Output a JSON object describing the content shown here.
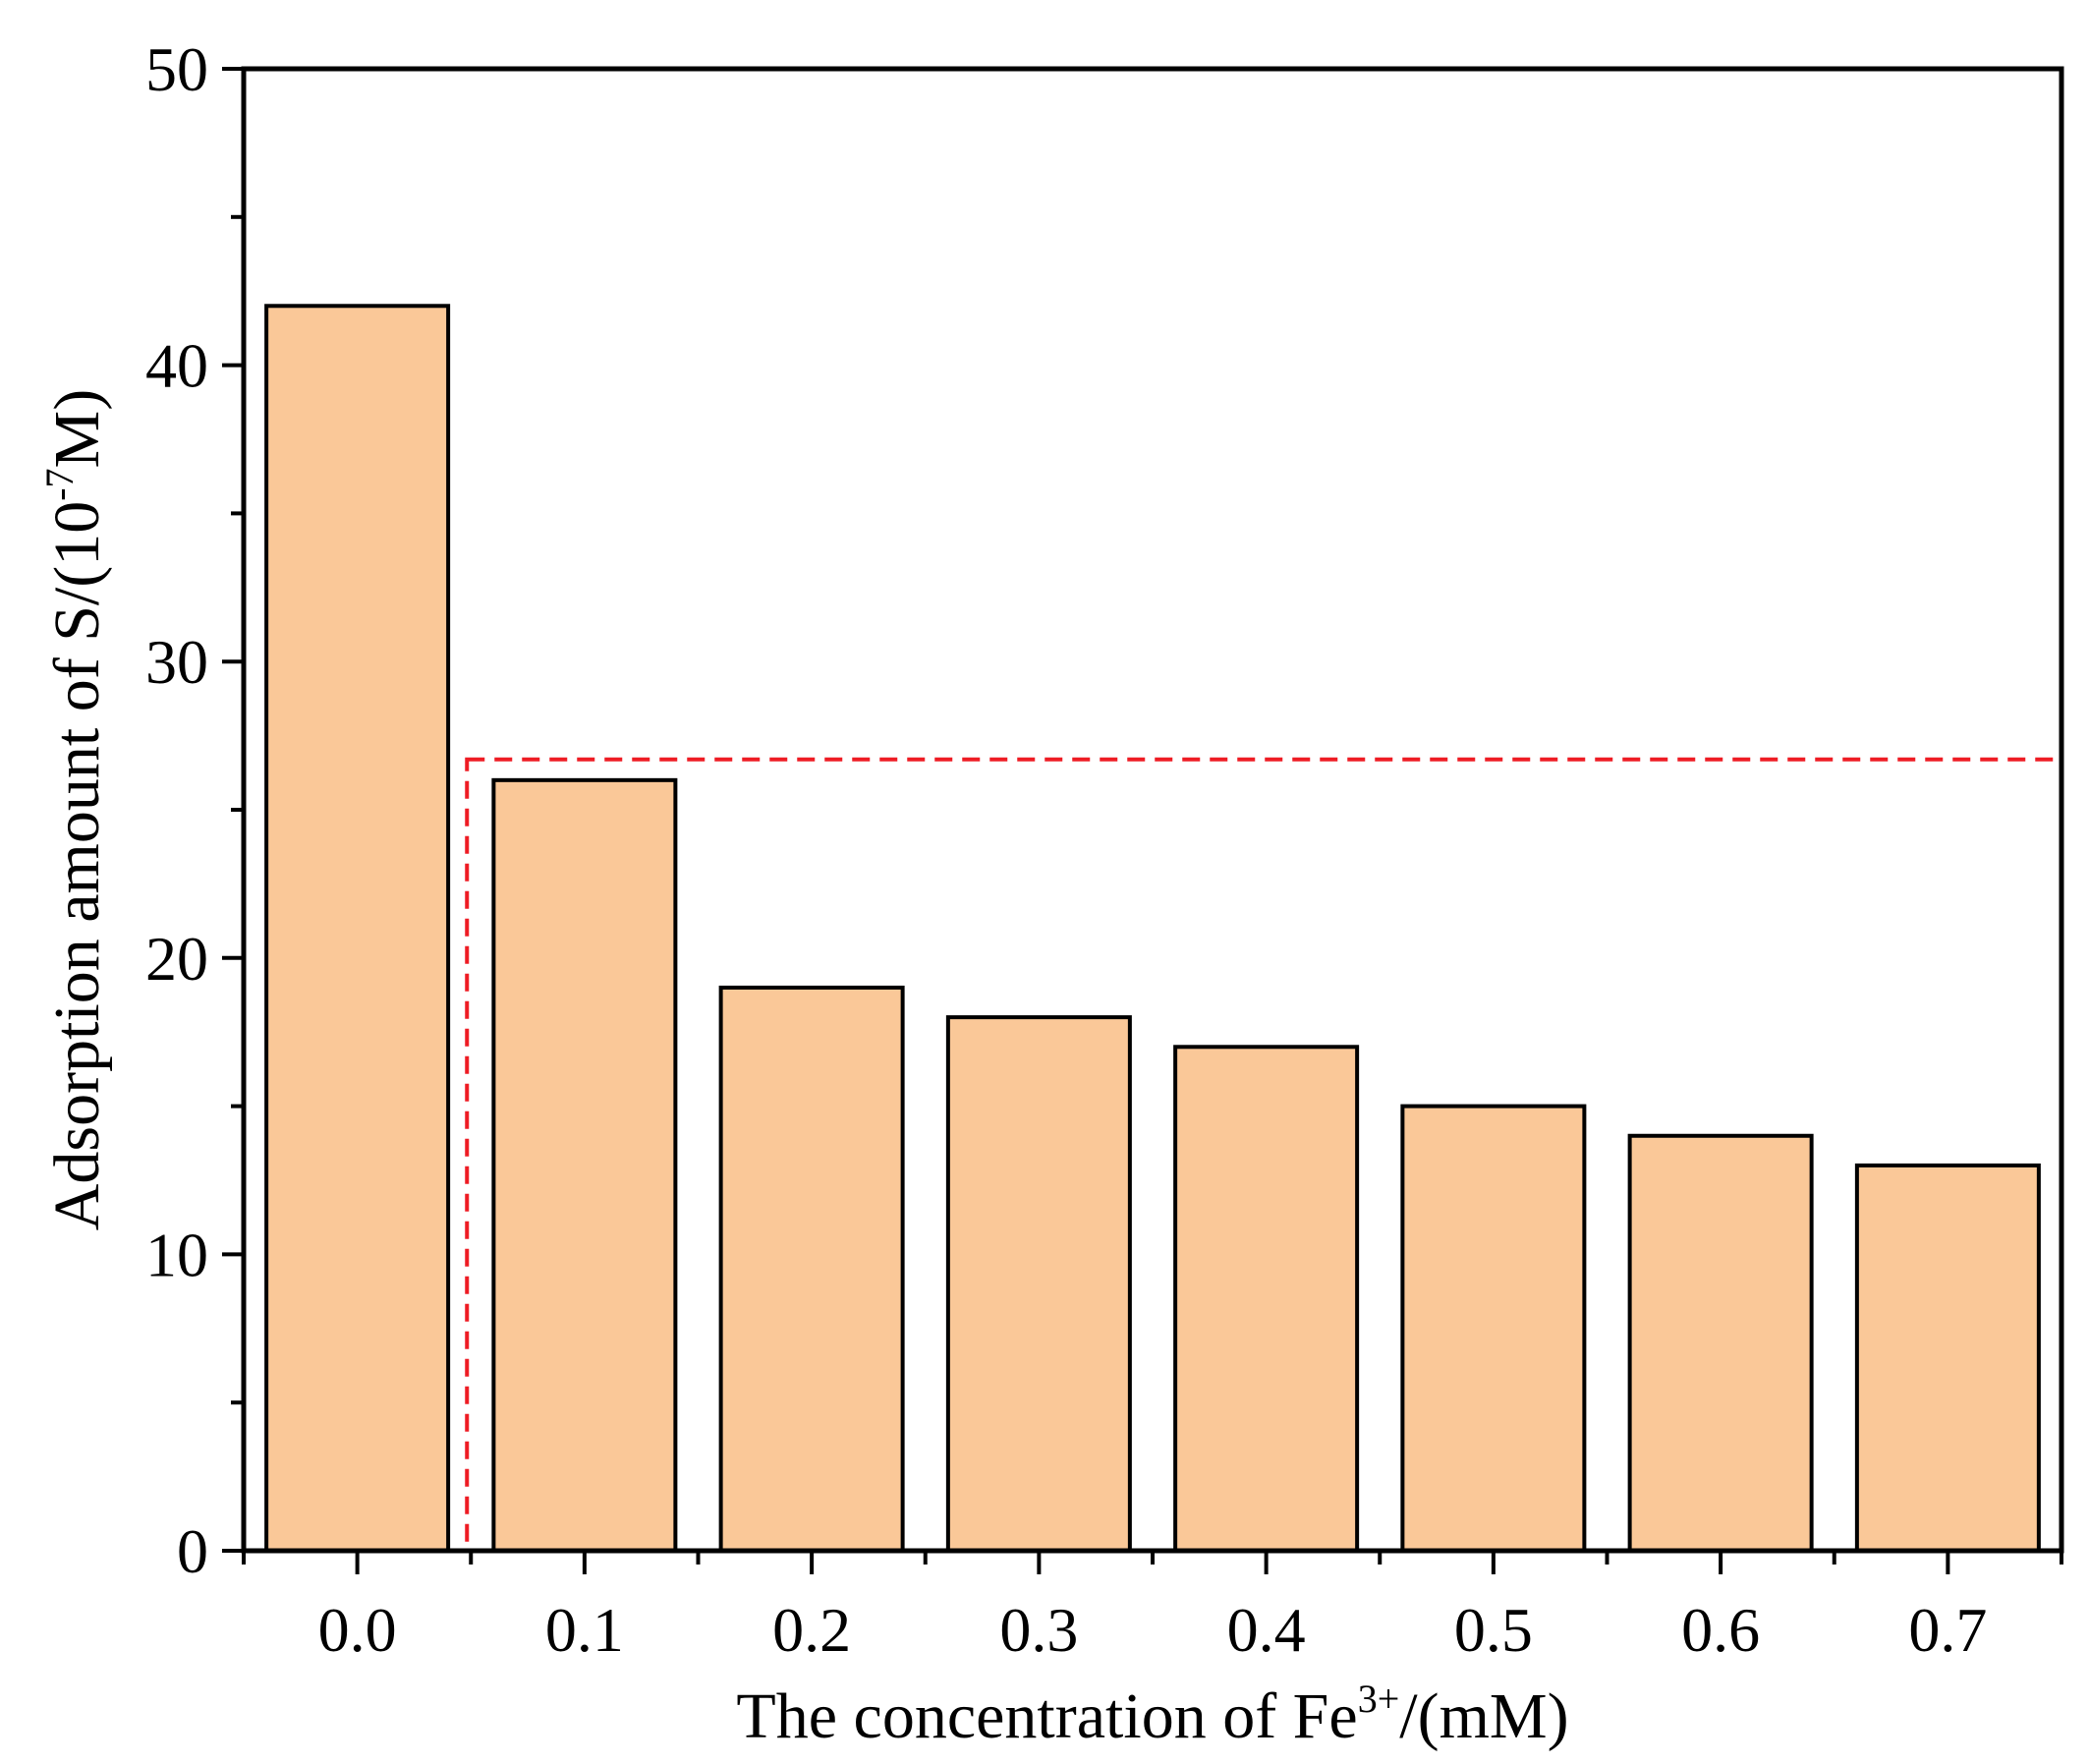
{
  "chart_data": {
    "type": "bar",
    "categories": [
      "0.0",
      "0.1",
      "0.2",
      "0.3",
      "0.4",
      "0.5",
      "0.6",
      "0.7"
    ],
    "values": [
      42,
      26,
      19,
      18,
      17,
      15,
      14,
      13
    ],
    "title": "",
    "xlabel": {
      "main": "The concentration of Fe",
      "superscript": "3+",
      "suffix": "/(mM)"
    },
    "ylabel": {
      "main": "Adsorption amount of S/(10",
      "superscript": "-7",
      "suffix": "M)"
    },
    "ylim": [
      0,
      50
    ],
    "yticks": [
      "0",
      "10",
      "20",
      "30",
      "40",
      "50"
    ],
    "grid": false,
    "legend": "none",
    "highlight_box": {
      "from_category": "0.1",
      "to_category": "0.7",
      "y_top": 26.7,
      "style": "dashed",
      "color": "#ee1c24"
    },
    "bar_fill": "#fac898",
    "bar_edge": "#000000"
  }
}
